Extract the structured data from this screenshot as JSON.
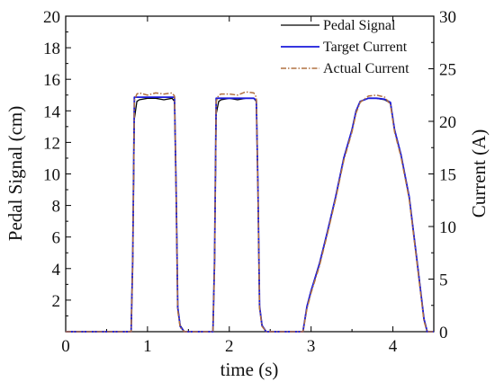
{
  "chart_data": {
    "type": "line",
    "title": "",
    "xlabel": "time (s)",
    "ylabel_left": "Pedal Signal (cm)",
    "ylabel_right": "Current (A)",
    "xlim": [
      0,
      4.5
    ],
    "ylim_left": [
      0,
      20
    ],
    "ylim_right": [
      0,
      30
    ],
    "x_ticks": [
      0,
      1,
      2,
      3,
      4
    ],
    "y_ticks_left": [
      2,
      4,
      6,
      8,
      10,
      12,
      14,
      16,
      18,
      20
    ],
    "y_ticks_right": [
      0,
      5,
      10,
      15,
      20,
      25,
      30
    ],
    "grid": false,
    "legend_position": "top-right",
    "series": [
      {
        "name": "Pedal Signal",
        "color": "#000000",
        "style": "solid",
        "axis": "left",
        "x": [
          0,
          0.8,
          0.82,
          0.84,
          0.87,
          0.9,
          1.0,
          1.1,
          1.2,
          1.3,
          1.33,
          1.35,
          1.37,
          1.4,
          1.45,
          1.8,
          1.82,
          1.84,
          1.87,
          1.9,
          2.0,
          2.1,
          2.2,
          2.3,
          2.33,
          2.35,
          2.37,
          2.4,
          2.45,
          2.9,
          2.95,
          3.0,
          3.1,
          3.2,
          3.3,
          3.4,
          3.5,
          3.55,
          3.6,
          3.7,
          3.8,
          3.9,
          3.97,
          4.02,
          4.1,
          4.2,
          4.3,
          4.38,
          4.42,
          4.5
        ],
        "y": [
          0,
          0,
          4.8,
          13.5,
          14.6,
          14.7,
          14.8,
          14.8,
          14.7,
          14.8,
          14.6,
          9.0,
          1.5,
          0.4,
          0,
          0,
          4.5,
          13.8,
          14.6,
          14.7,
          14.8,
          14.7,
          14.8,
          14.8,
          14.6,
          9.2,
          1.6,
          0.4,
          0,
          0,
          1.6,
          2.6,
          4.3,
          6.3,
          8.5,
          11.0,
          12.8,
          14.0,
          14.6,
          14.8,
          14.8,
          14.7,
          14.5,
          12.8,
          11.2,
          8.5,
          4.3,
          0.8,
          0,
          0
        ]
      },
      {
        "name": "Target Current",
        "color": "#1a1adb",
        "style": "solid",
        "axis": "right",
        "x": [
          0,
          0.8,
          0.82,
          0.84,
          0.87,
          0.9,
          1.0,
          1.1,
          1.2,
          1.3,
          1.33,
          1.35,
          1.37,
          1.4,
          1.45,
          1.8,
          1.82,
          1.84,
          1.87,
          1.9,
          2.0,
          2.1,
          2.2,
          2.3,
          2.33,
          2.35,
          2.37,
          2.4,
          2.45,
          2.9,
          2.95,
          3.0,
          3.1,
          3.2,
          3.3,
          3.4,
          3.5,
          3.55,
          3.6,
          3.7,
          3.8,
          3.9,
          3.97,
          4.02,
          4.1,
          4.2,
          4.3,
          4.38,
          4.42,
          4.5
        ],
        "y": [
          0,
          0,
          7.0,
          22.3,
          22.3,
          22.3,
          22.3,
          22.3,
          22.3,
          22.3,
          22.3,
          13.5,
          2.3,
          0.5,
          0,
          0,
          6.8,
          22.2,
          22.2,
          22.2,
          22.2,
          22.2,
          22.2,
          22.2,
          22.0,
          13.8,
          2.4,
          0.6,
          0,
          0,
          2.4,
          3.9,
          6.4,
          9.5,
          12.8,
          16.5,
          19.2,
          21.0,
          21.9,
          22.2,
          22.2,
          22.1,
          21.8,
          19.2,
          16.8,
          12.8,
          6.4,
          1.2,
          0,
          0
        ]
      },
      {
        "name": "Actual Current",
        "color": "#b07040",
        "style": "dashdot",
        "axis": "right",
        "x": [
          0,
          0.8,
          0.82,
          0.84,
          0.87,
          0.9,
          1.0,
          1.1,
          1.2,
          1.3,
          1.33,
          1.35,
          1.37,
          1.4,
          1.45,
          1.8,
          1.82,
          1.84,
          1.87,
          1.9,
          2.0,
          2.1,
          2.2,
          2.3,
          2.33,
          2.35,
          2.37,
          2.4,
          2.45,
          2.9,
          2.95,
          3.0,
          3.1,
          3.2,
          3.3,
          3.4,
          3.5,
          3.55,
          3.6,
          3.7,
          3.8,
          3.9,
          3.97,
          4.02,
          4.1,
          4.2,
          4.3,
          4.38,
          4.42,
          4.5
        ],
        "y": [
          0,
          0,
          6.5,
          22.0,
          22.6,
          22.7,
          22.5,
          22.7,
          22.6,
          22.7,
          22.4,
          13.0,
          2.0,
          0.4,
          0,
          0,
          6.3,
          21.9,
          22.5,
          22.6,
          22.6,
          22.5,
          22.8,
          22.7,
          22.3,
          13.4,
          2.2,
          0.5,
          0,
          0,
          2.2,
          3.7,
          6.2,
          9.3,
          12.6,
          16.3,
          19.0,
          20.8,
          21.8,
          22.4,
          22.5,
          22.3,
          21.6,
          19.0,
          16.6,
          12.6,
          6.2,
          1.0,
          0,
          0
        ]
      }
    ]
  }
}
